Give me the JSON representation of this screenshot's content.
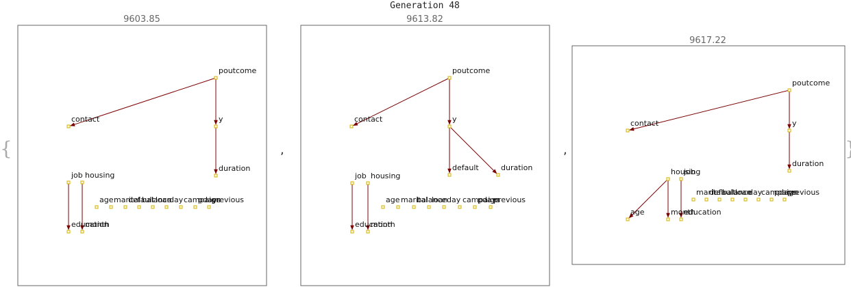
{
  "title": "Generation 48",
  "open_brace": "{",
  "close_brace": "}",
  "separator": ",",
  "colors": {
    "edge": "#7a0000",
    "node_stroke": "#d4b000",
    "node_fill": "#fffbe0"
  },
  "graphs": [
    {
      "score": "9603.85",
      "nodes": [
        "poutcome",
        "contact",
        "y",
        "duration",
        "job",
        "housing",
        "age",
        "marital",
        "default",
        "balance",
        "loan",
        "day",
        "campaign",
        "pdays",
        "previous",
        "education",
        "month"
      ],
      "edges": [
        [
          "poutcome",
          "contact"
        ],
        [
          "poutcome",
          "y"
        ],
        [
          "y",
          "duration"
        ],
        [
          "job",
          "education"
        ],
        [
          "housing",
          "month"
        ]
      ]
    },
    {
      "score": "9613.82",
      "nodes": [
        "poutcome",
        "contact",
        "y",
        "default",
        "duration",
        "job",
        "housing",
        "age",
        "marital",
        "balance",
        "loan",
        "day",
        "campaign",
        "pdays",
        "previous",
        "education",
        "month"
      ],
      "edges": [
        [
          "poutcome",
          "contact"
        ],
        [
          "poutcome",
          "y"
        ],
        [
          "y",
          "default"
        ],
        [
          "y",
          "duration"
        ],
        [
          "job",
          "education"
        ],
        [
          "housing",
          "month"
        ]
      ]
    },
    {
      "score": "9617.22",
      "nodes": [
        "poutcome",
        "contact",
        "y",
        "duration",
        "housing",
        "job",
        "marital",
        "default",
        "balance",
        "loan",
        "day",
        "campaign",
        "pdays",
        "previous",
        "age",
        "month",
        "education"
      ],
      "edges": [
        [
          "poutcome",
          "contact"
        ],
        [
          "poutcome",
          "y"
        ],
        [
          "y",
          "duration"
        ],
        [
          "housing",
          "age"
        ],
        [
          "housing",
          "month"
        ],
        [
          "job",
          "education"
        ]
      ]
    }
  ]
}
